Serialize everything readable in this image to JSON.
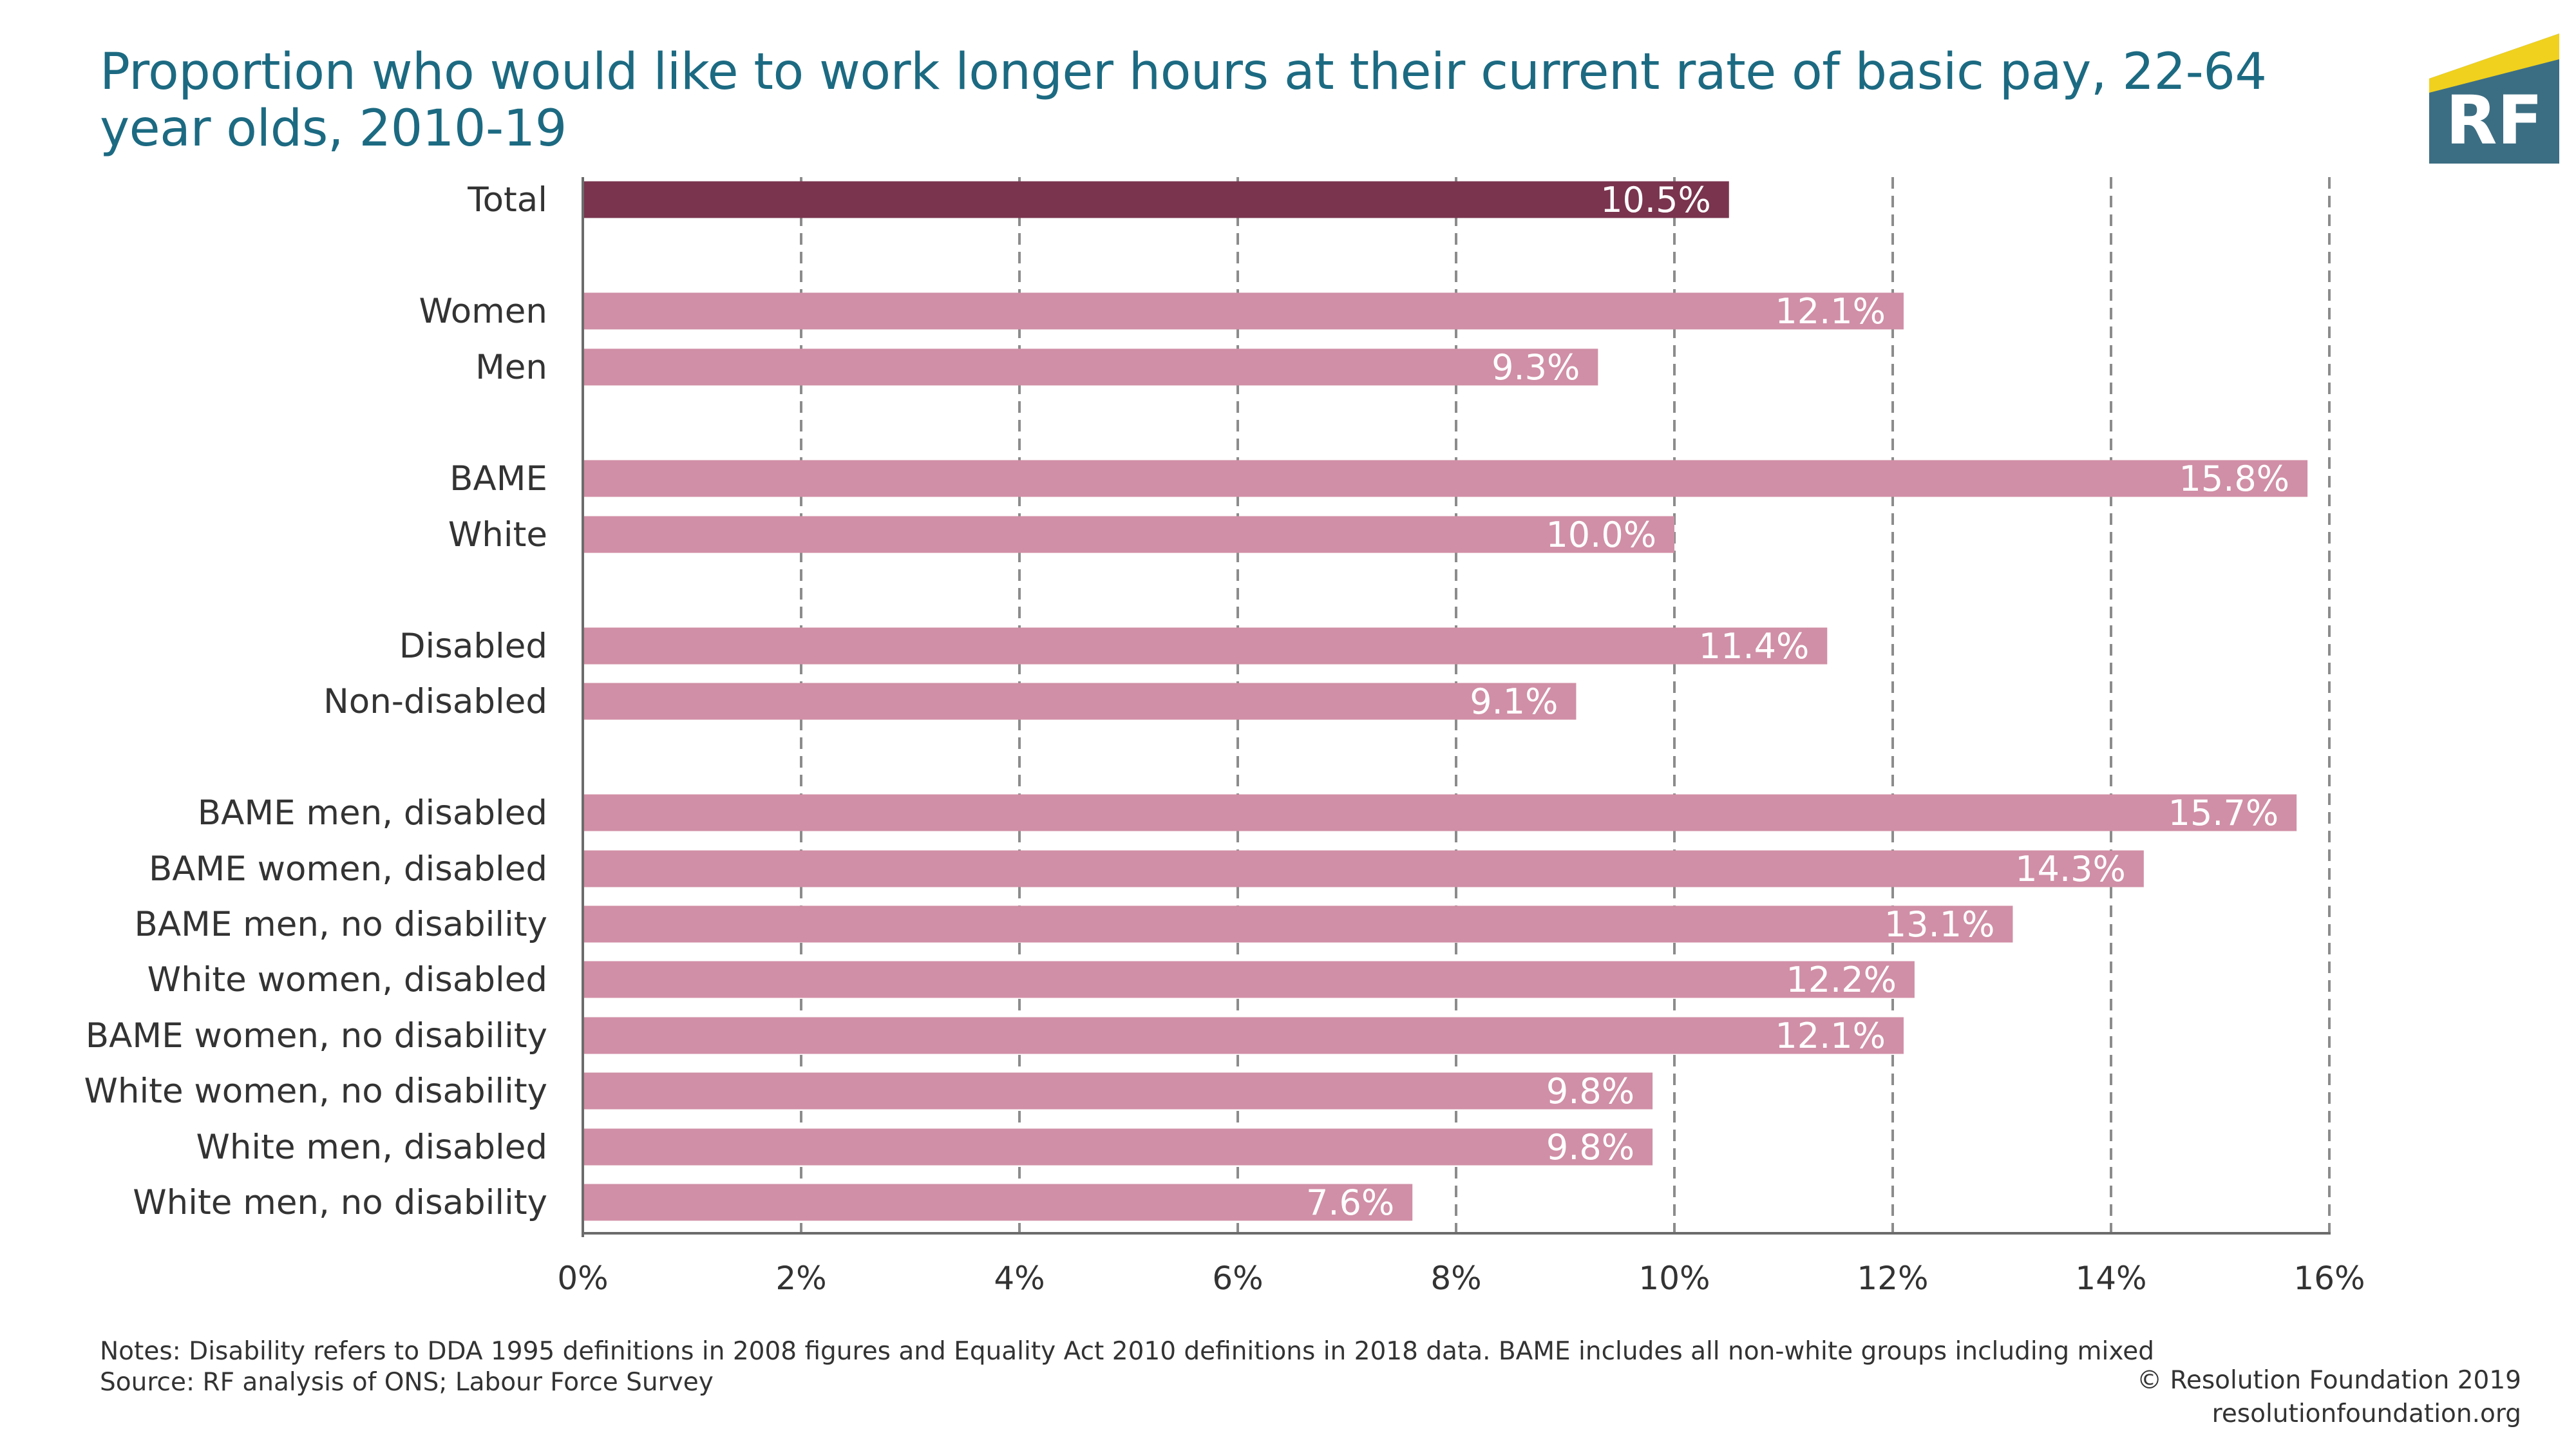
{
  "title": "Proportion who would like to work longer hours at their current rate of basic pay, 22-64 year olds, 2010-19",
  "logo": {
    "text": "RF",
    "colors": {
      "blue": "#3c6e83",
      "yellow": "#f0d11d"
    }
  },
  "chart_data": {
    "type": "bar",
    "orientation": "horizontal",
    "title": "Proportion who would like to work longer hours at their current rate of basic pay, 22-64 year olds, 2010-19",
    "xlabel": "",
    "ylabel": "",
    "xlim": [
      0,
      16
    ],
    "x_ticks": [
      "0%",
      "2%",
      "4%",
      "6%",
      "8%",
      "10%",
      "12%",
      "14%",
      "16%"
    ],
    "grid": "vertical dashed",
    "value_suffix": "%",
    "colors": {
      "highlight": "#7a344e",
      "bar": "#d08fa6"
    },
    "categories": [
      {
        "label": "Total",
        "value": 10.5,
        "highlight": true
      },
      {
        "label": "Women",
        "value": 12.1
      },
      {
        "label": "Men",
        "value": 9.3
      },
      {
        "label": "BAME",
        "value": 15.8
      },
      {
        "label": "White",
        "value": 10.0
      },
      {
        "label": "Disabled",
        "value": 11.4
      },
      {
        "label": "Non-disabled",
        "value": 9.1
      },
      {
        "label": "BAME men, disabled",
        "value": 15.7
      },
      {
        "label": "BAME women, disabled",
        "value": 14.3
      },
      {
        "label": "BAME men, no disability",
        "value": 13.1
      },
      {
        "label": "White women, disabled",
        "value": 12.2
      },
      {
        "label": "BAME women, no disability",
        "value": 12.1
      },
      {
        "label": "White women, no disability",
        "value": 9.8
      },
      {
        "label": "White men, disabled",
        "value": 9.8
      },
      {
        "label": "White men, no disability",
        "value": 7.6
      }
    ],
    "data_labels": [
      "10.5%",
      "12.1%",
      "9.3%",
      "15.8%",
      "10.0%",
      "11.4%",
      "9.1%",
      "15.7%",
      "14.3%",
      "13.1%",
      "12.2%",
      "12.1%",
      "9.8%",
      "9.8%",
      "7.6%"
    ]
  },
  "footer": {
    "notes": "Notes: Disability refers to DDA 1995 definitions in 2008 figures and Equality Act 2010 definitions in 2018 data. BAME includes all non-white groups including mixed",
    "source": "Source: RF analysis of ONS; Labour Force Survey",
    "copyright": "© Resolution Foundation 2019",
    "website": "resolutionfoundation.org"
  }
}
